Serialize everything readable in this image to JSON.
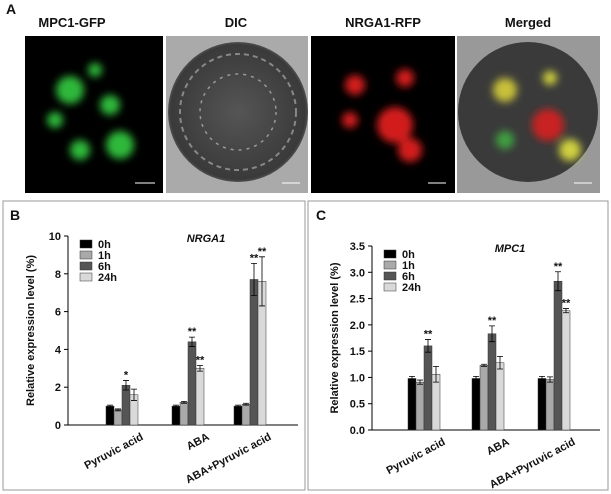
{
  "figure": {
    "panel_labels": [
      "A",
      "B",
      "C"
    ],
    "image_titles": [
      "MPC1-GFP",
      "DIC",
      "NRGA1-RFP",
      "Merged"
    ]
  },
  "chart_data": [
    {
      "type": "bar",
      "title": "NRGA1",
      "y_label": "Relative expression level (%)",
      "categories": [
        "Pyruvic acid",
        "ABA",
        "ABA+Pyruvic acid"
      ],
      "series": [
        {
          "name": "0h",
          "color": "#000000",
          "values": [
            1.0,
            1.0,
            1.0
          ],
          "errors": [
            0.05,
            0.05,
            0.05
          ],
          "significance": [
            null,
            null,
            null
          ]
        },
        {
          "name": "1h",
          "color": "#a9a9a9",
          "values": [
            0.8,
            1.2,
            1.1
          ],
          "errors": [
            0.05,
            0.05,
            0.05
          ],
          "significance": [
            null,
            null,
            null
          ]
        },
        {
          "name": "6h",
          "color": "#555555",
          "values": [
            2.1,
            4.4,
            7.7
          ],
          "errors": [
            0.25,
            0.25,
            0.85
          ],
          "significance": [
            "*",
            "**",
            "**"
          ]
        },
        {
          "name": "24h",
          "color": "#d9d9d9",
          "values": [
            1.6,
            3.0,
            7.6
          ],
          "errors": [
            0.3,
            0.15,
            1.3
          ],
          "significance": [
            null,
            "**",
            "**"
          ]
        }
      ],
      "ylim": [
        0,
        10
      ],
      "yticks": [
        0,
        2,
        4,
        6,
        8,
        10
      ],
      "legend": "upper-left"
    },
    {
      "type": "bar",
      "title": "MPC1",
      "y_label": "Relative expression level (%)",
      "categories": [
        "Pyruvic acid",
        "ABA",
        "ABA+Pyruvic acid"
      ],
      "series": [
        {
          "name": "0h",
          "color": "#000000",
          "values": [
            0.98,
            0.98,
            0.98
          ],
          "errors": [
            0.04,
            0.04,
            0.04
          ],
          "significance": [
            null,
            null,
            null
          ]
        },
        {
          "name": "1h",
          "color": "#a9a9a9",
          "values": [
            0.91,
            1.23,
            0.96
          ],
          "errors": [
            0.04,
            0.02,
            0.05
          ],
          "significance": [
            null,
            null,
            null
          ]
        },
        {
          "name": "6h",
          "color": "#555555",
          "values": [
            1.6,
            1.83,
            2.83
          ],
          "errors": [
            0.12,
            0.15,
            0.18
          ],
          "significance": [
            "**",
            "**",
            "**"
          ]
        },
        {
          "name": "24h",
          "color": "#d9d9d9",
          "values": [
            1.06,
            1.28,
            2.27
          ],
          "errors": [
            0.15,
            0.12,
            0.04
          ],
          "significance": [
            null,
            null,
            "**"
          ]
        }
      ],
      "ylim": [
        0,
        3.5
      ],
      "yticks": [
        {
          "value": 0,
          "label": "0.0"
        },
        0.5,
        {
          "value": 1,
          "label": "1.0"
        },
        1.5,
        {
          "value": 2,
          "label": "2.0"
        },
        2.5,
        {
          "value": 3,
          "label": "3.0"
        },
        3.5
      ],
      "legend": "upper-left"
    }
  ]
}
